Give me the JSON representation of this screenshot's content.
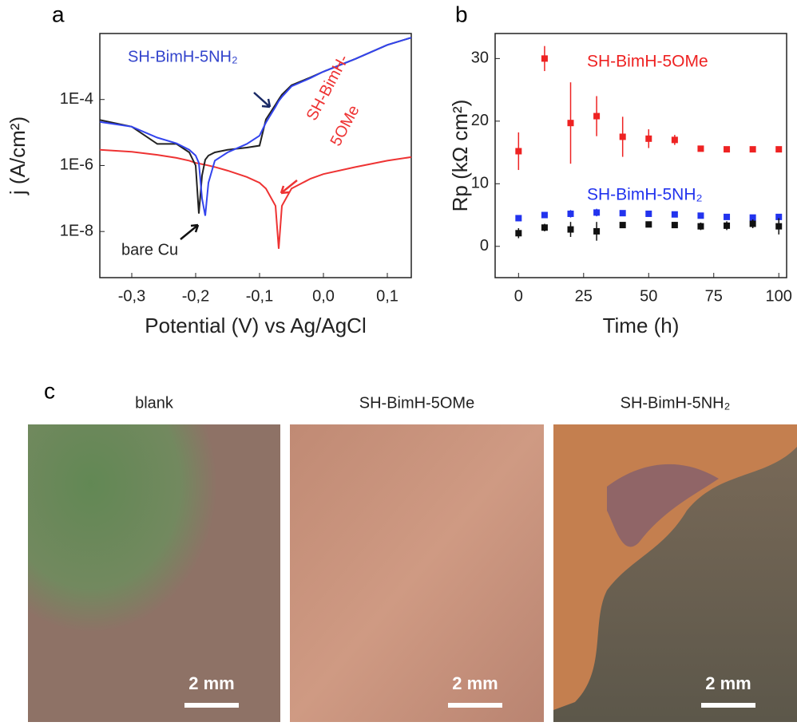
{
  "chart_data": [
    {
      "type": "line",
      "panel_label": "a",
      "xlabel": "Potential (V) vs Ag/AgCl",
      "ylabel": "j (A/cm²)",
      "log_y": true,
      "xlim": [
        -0.35,
        0.1375
      ],
      "ylim": [
        4e-10,
        0.01
      ],
      "xticks": [
        {
          "value": -0.3,
          "label": "-0,3"
        },
        {
          "value": -0.2,
          "label": "-0,2"
        },
        {
          "value": -0.1,
          "label": "-0,1"
        },
        {
          "value": 0.0,
          "label": "0,0"
        },
        {
          "value": 0.1,
          "label": "0,1"
        }
      ],
      "yticks": [
        {
          "value": 1e-08,
          "label": "1E-8"
        },
        {
          "value": 1e-06,
          "label": "1E-6"
        },
        {
          "value": 0.0001,
          "label": "1E-4"
        }
      ],
      "x": [
        -0.35,
        -0.3,
        -0.26,
        -0.23,
        -0.21,
        -0.2,
        -0.195,
        -0.19,
        -0.185,
        -0.18,
        -0.17,
        -0.15,
        -0.12,
        -0.1,
        -0.09,
        -0.075,
        -0.07,
        -0.065,
        -0.05,
        -0.02,
        0.0,
        0.05,
        0.1,
        0.1375
      ],
      "series": [
        {
          "color": "#ee3333",
          "values": [
            3e-06,
            2.6e-06,
            2.1e-06,
            1.7e-06,
            1.4e-06,
            1.2e-06,
            1.15e-06,
            1.1e-06,
            1.05e-06,
            1e-06,
            9e-07,
            7e-07,
            4.5e-07,
            3e-07,
            2e-07,
            6e-08,
            3e-09,
            6e-08,
            2e-07,
            4e-07,
            5.5e-07,
            9e-07,
            1.4e-06,
            1.8e-06
          ]
        },
        {
          "color": "#222222",
          "values": [
            2.4e-05,
            1.5e-05,
            4.5e-06,
            4.5e-06,
            2.5e-06,
            1e-06,
            3.5e-08,
            5e-07,
            1.5e-06,
            2e-06,
            2.5e-06,
            3e-06,
            3.5e-06,
            4e-06,
            2.5e-05,
            7e-05,
            0.0001,
            0.00014,
            0.00027,
            0.00047,
            0.0007,
            0.0017,
            0.0045,
            0.0075
          ]
        },
        {
          "color": "#3344ee",
          "values": [
            2.1e-05,
            1.5e-05,
            7e-06,
            4.7e-06,
            3e-06,
            2e-06,
            1.2e-06,
            1e-07,
            3e-08,
            3e-07,
            1.4e-06,
            2.5e-06,
            4.5e-06,
            8e-06,
            2e-05,
            6e-05,
            9e-05,
            0.00012,
            0.00025,
            0.00045,
            0.0007,
            0.0017,
            0.0045,
            0.0075
          ]
        }
      ],
      "annotations": [
        {
          "text": "SH-BimH-5NH₂",
          "color": "#3344cc"
        },
        {
          "text": "SH-BimH-",
          "color": "#ee3333"
        },
        {
          "text": "5OMe",
          "color": "#ee3333"
        },
        {
          "text": "bare Cu",
          "color": "#222222"
        }
      ]
    },
    {
      "type": "errorbar",
      "panel_label": "b",
      "xlabel": "Time (h)",
      "ylabel": "Rp (kΩ cm²)",
      "xlim": [
        -9,
        103
      ],
      "ylim": [
        -5,
        34
      ],
      "xticks": [
        0,
        25,
        50,
        75,
        100
      ],
      "yticks": [
        0,
        10,
        20,
        30
      ],
      "x": [
        0,
        10,
        20,
        30,
        40,
        50,
        60,
        70,
        80,
        90,
        100
      ],
      "series": [
        {
          "name": "SH-BimH-5OMe",
          "color": "#ee2222",
          "values": [
            15.2,
            30,
            19.7,
            20.8,
            17.5,
            17.2,
            17,
            15.6,
            15.5,
            15.5,
            15.5
          ],
          "errors": [
            3,
            2,
            6.5,
            3.2,
            3.2,
            1.5,
            0.8,
            0.3,
            0.3,
            0.3,
            0.3
          ]
        },
        {
          "name": "SH-BimH-5NH₂",
          "color": "#2233ee",
          "values": [
            4.5,
            5,
            5.2,
            5.4,
            5.3,
            5.2,
            5.1,
            4.9,
            4.7,
            4.6,
            4.7
          ],
          "errors": [
            0.5,
            0.5,
            0.6,
            0.6,
            0.4,
            0.4,
            0.4,
            0.4,
            0.4,
            0.4,
            0.4
          ]
        },
        {
          "color": "#111111",
          "values": [
            2.1,
            3,
            2.7,
            2.4,
            3.4,
            3.5,
            3.4,
            3.2,
            3.3,
            3.6,
            3.2
          ],
          "errors": [
            0.8,
            0.6,
            1.2,
            1.5,
            0.4,
            0.4,
            0.5,
            0.6,
            0.7,
            0.7,
            1.3
          ]
        }
      ]
    }
  ],
  "photos": {
    "panel_label": "c",
    "items": [
      {
        "title": "blank",
        "scale_bar": "2 mm"
      },
      {
        "title": "SH-BimH-5OMe",
        "scale_bar": "2 mm"
      },
      {
        "title": "SH-BimH-5NH₂",
        "scale_bar": "2 mm"
      }
    ]
  }
}
